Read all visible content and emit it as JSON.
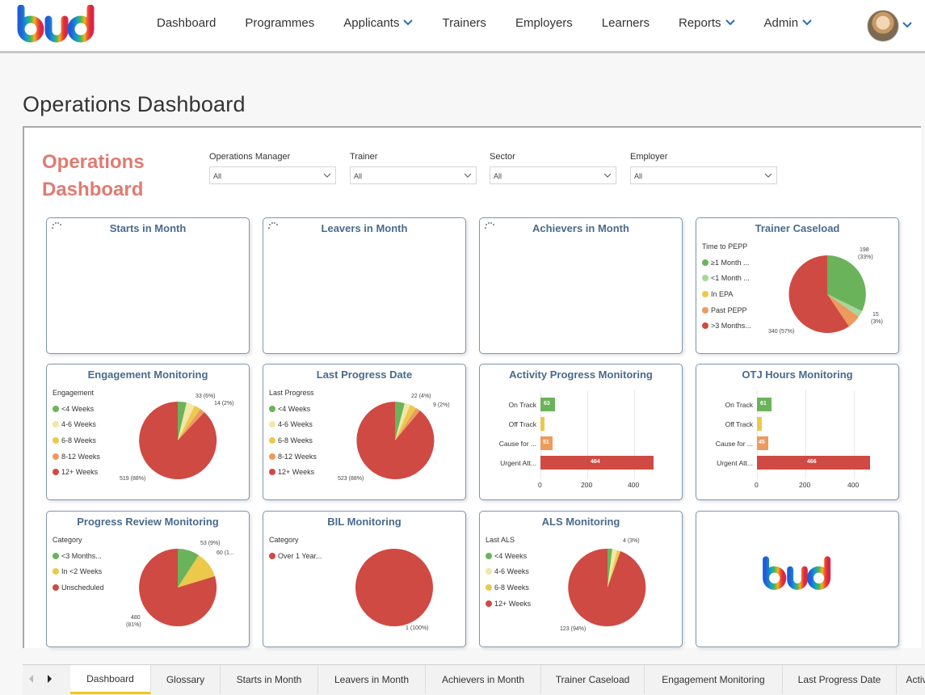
{
  "nav": {
    "logo_alt": "bud",
    "items": [
      {
        "label": "Dashboard",
        "dropdown": false
      },
      {
        "label": "Programmes",
        "dropdown": false
      },
      {
        "label": "Applicants",
        "dropdown": true
      },
      {
        "label": "Trainers",
        "dropdown": false
      },
      {
        "label": "Employers",
        "dropdown": false
      },
      {
        "label": "Learners",
        "dropdown": false
      },
      {
        "label": "Reports",
        "dropdown": true
      },
      {
        "label": "Admin",
        "dropdown": true
      }
    ],
    "accent": "#2b6cb0"
  },
  "page_title": "Operations Dashboard",
  "report": {
    "title_line1": "Operations",
    "title_line2": "Dashboard",
    "slicers": [
      {
        "label": "Operations Manager",
        "value": "All"
      },
      {
        "label": "Trainer",
        "value": "All"
      },
      {
        "label": "Sector",
        "value": "All"
      },
      {
        "label": "Employer",
        "value": "All"
      }
    ],
    "cards": {
      "starts": {
        "title": "Starts in Month"
      },
      "leavers": {
        "title": "Leavers in Month"
      },
      "achievers": {
        "title": "Achievers in Month"
      },
      "trainer": {
        "title": "Trainer Caseload",
        "legend_title": "Time to PEPP",
        "legend": [
          "≥1 Month ...",
          "<1 Month ...",
          "In EPA",
          "Past PEPP",
          ">3 Months..."
        ],
        "labels": {
          "a": "198",
          "a2": "(33%)",
          "b": "15",
          "b2": "(3%)",
          "c": "340 (57%)"
        }
      },
      "engagement": {
        "title": "Engagement Monitoring",
        "legend_title": "Engagement",
        "legend": [
          "<4 Weeks",
          "4-6 Weeks",
          "6-8 Weeks",
          "8-12 Weeks",
          "12+ Weeks"
        ],
        "labels": {
          "a": "33 (6%)",
          "b": "14 (2%)",
          "c": "519 (88%)"
        }
      },
      "lastprogress": {
        "title": "Last Progress Date",
        "legend_title": "Last Progress",
        "legend": [
          "<4 Weeks",
          "4-6 Weeks",
          "6-8 Weeks",
          "8-12 Weeks",
          "12+ Weeks"
        ],
        "labels": {
          "a": "22 (4%)",
          "b": "9 (2%)",
          "c": "523 (88%)"
        }
      },
      "activity": {
        "title": "Activity Progress Monitoring",
        "categories": [
          "On Track",
          "Off Track",
          "Cause for ...",
          "Urgent Att..."
        ],
        "values": [
          63,
          15,
          51,
          484
        ],
        "value_labels": [
          "63",
          "",
          "51",
          "484"
        ],
        "ticks": [
          "0",
          "200",
          "400"
        ]
      },
      "otj": {
        "title": "OTJ Hours Monitoring",
        "categories": [
          "On Track",
          "Off Track",
          "Cause for ...",
          "Urgent Att..."
        ],
        "values": [
          61,
          20,
          45,
          466
        ],
        "value_labels": [
          "61",
          "",
          "45",
          "466"
        ],
        "ticks": [
          "0",
          "200",
          "400"
        ]
      },
      "progressreview": {
        "title": "Progress Review Monitoring",
        "legend_title": "Category",
        "legend": [
          "<3 Months...",
          "In <2 Weeks",
          "Unscheduled"
        ],
        "labels": {
          "a": "53 (9%)",
          "b": "60 (1...",
          "c1": "480",
          "c2": "(81%)"
        }
      },
      "bil": {
        "title": "BIL Monitoring",
        "legend_title": "Category",
        "legend": [
          "Over 1 Year..."
        ],
        "labels": {
          "a": "1 (100%)"
        }
      },
      "als": {
        "title": "ALS Monitoring",
        "legend_title": "Last ALS",
        "legend": [
          "<4 Weeks",
          "4-6 Weeks",
          "6-8 Weeks",
          "12+ Weeks"
        ],
        "labels": {
          "a": "4 (3%)",
          "b": "123 (94%)"
        }
      }
    },
    "colors": {
      "green": "#6bb35a",
      "lightgreen": "#a8d69a",
      "cream": "#f3e6a6",
      "yellow": "#ecc94b",
      "orange": "#ed9a5f",
      "red": "#cf4a43"
    }
  },
  "tabs": [
    {
      "label": "Dashboard",
      "active": true
    },
    {
      "label": "Glossary",
      "active": false
    },
    {
      "label": "Starts in Month",
      "active": false
    },
    {
      "label": "Leavers in Month",
      "active": false
    },
    {
      "label": "Achievers in Month",
      "active": false
    },
    {
      "label": "Trainer Caseload",
      "active": false
    },
    {
      "label": "Engagement Monitoring",
      "active": false
    },
    {
      "label": "Last Progress Date",
      "active": false
    },
    {
      "label": "Activ",
      "active": false
    }
  ]
}
